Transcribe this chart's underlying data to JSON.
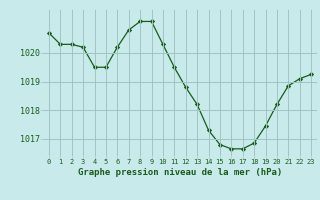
{
  "x": [
    0,
    1,
    2,
    3,
    4,
    5,
    6,
    7,
    8,
    9,
    10,
    11,
    12,
    13,
    14,
    15,
    16,
    17,
    18,
    19,
    20,
    21,
    22,
    23
  ],
  "y": [
    1020.7,
    1020.3,
    1020.3,
    1020.2,
    1019.5,
    1019.5,
    1020.2,
    1020.8,
    1021.1,
    1021.1,
    1020.3,
    1019.5,
    1018.8,
    1018.2,
    1017.3,
    1016.8,
    1016.65,
    1016.65,
    1016.85,
    1017.45,
    1018.2,
    1018.85,
    1019.1,
    1019.25
  ],
  "line_color": "#1a5c1a",
  "marker_color": "#1a5c1a",
  "bg_color": "#c8eaea",
  "grid_color": "#a0c4c4",
  "label_color": "#1a5c1a",
  "xlabel": "Graphe pression niveau de la mer (hPa)",
  "ylim": [
    1016.4,
    1021.5
  ],
  "yticks": [
    1017,
    1018,
    1019,
    1020
  ],
  "xticks": [
    0,
    1,
    2,
    3,
    4,
    5,
    6,
    7,
    8,
    9,
    10,
    11,
    12,
    13,
    14,
    15,
    16,
    17,
    18,
    19,
    20,
    21,
    22,
    23
  ],
  "figsize": [
    3.2,
    2.0
  ],
  "dpi": 100
}
